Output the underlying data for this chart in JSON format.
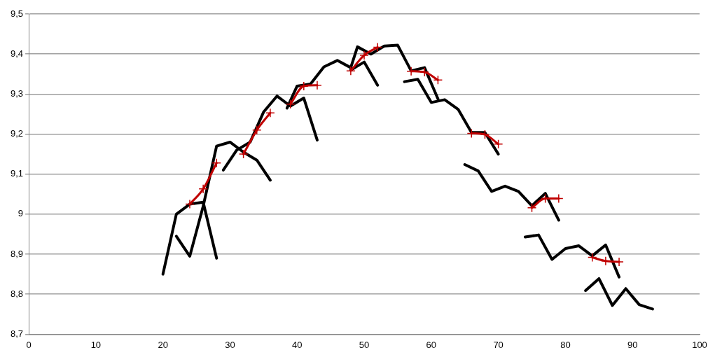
{
  "chart_data": {
    "type": "line",
    "xlim": [
      0,
      100
    ],
    "xticks": [
      0,
      10,
      20,
      30,
      40,
      50,
      60,
      70,
      80,
      90,
      100
    ],
    "ylim": [
      8.7,
      9.5
    ],
    "yticks": [
      {
        "value": 8.7,
        "label": "8,7"
      },
      {
        "value": 8.8,
        "label": "8,8"
      },
      {
        "value": 8.9,
        "label": "8,9"
      },
      {
        "value": 9,
        "label": "9"
      },
      {
        "value": 9.1,
        "label": "9,1"
      },
      {
        "value": 9.2,
        "label": "9,2"
      },
      {
        "value": 9.3,
        "label": "9,3"
      },
      {
        "value": 9.4,
        "label": "9,4"
      },
      {
        "value": 9.5,
        "label": "9,5"
      }
    ],
    "grid": "y",
    "legend": false,
    "line_style": "solid",
    "series": [
      {
        "color": "#000000",
        "marker": "none",
        "x": [
          20,
          22,
          24,
          26,
          28
        ],
        "values": [
          8.85,
          9.0,
          9.025,
          9.03,
          8.89
        ]
      },
      {
        "color": "#000000",
        "marker": "none",
        "x": [
          22,
          24,
          26,
          28,
          30,
          32,
          34,
          36
        ],
        "values": [
          8.945,
          8.895,
          9.02,
          9.17,
          9.18,
          9.155,
          9.135,
          9.085
        ]
      },
      {
        "color": "#000000",
        "marker": "none",
        "x": [
          29,
          31,
          33,
          35,
          37,
          39,
          41,
          43
        ],
        "values": [
          9.11,
          9.16,
          9.18,
          9.255,
          9.295,
          9.27,
          9.29,
          9.185
        ]
      },
      {
        "color": "#000000",
        "marker": "none",
        "x": [
          38.5,
          40,
          42,
          44,
          46,
          48,
          49,
          51,
          53,
          55,
          57,
          59,
          61
        ],
        "values": [
          9.265,
          9.32,
          9.325,
          9.368,
          9.384,
          9.366,
          9.418,
          9.4,
          9.42,
          9.422,
          9.358,
          9.366,
          9.288
        ]
      },
      {
        "color": "#000000",
        "marker": "none",
        "x": [
          48,
          50,
          52
        ],
        "values": [
          9.36,
          9.38,
          9.322
        ]
      },
      {
        "color": "#000000",
        "marker": "none",
        "x": [
          56,
          58,
          60,
          62,
          64,
          66,
          68,
          70
        ],
        "values": [
          9.331,
          9.337,
          9.279,
          9.286,
          9.262,
          9.204,
          9.204,
          9.15
        ]
      },
      {
        "color": "#000000",
        "marker": "none",
        "x": [
          65,
          67,
          69,
          71,
          73,
          75,
          77,
          79
        ],
        "values": [
          9.124,
          9.108,
          9.057,
          9.07,
          9.057,
          9.021,
          9.052,
          8.985
        ]
      },
      {
        "color": "#000000",
        "marker": "none",
        "x": [
          74,
          76,
          78,
          80,
          82,
          84,
          86,
          88
        ],
        "values": [
          8.943,
          8.948,
          8.887,
          8.914,
          8.921,
          8.896,
          8.923,
          8.843
        ]
      },
      {
        "color": "#000000",
        "marker": "none",
        "x": [
          83,
          85,
          87,
          89,
          91,
          93
        ],
        "values": [
          8.809,
          8.839,
          8.772,
          8.814,
          8.774,
          8.763
        ]
      },
      {
        "color": "#c00000",
        "marker": "cross",
        "x": [
          24,
          26,
          28
        ],
        "values": [
          9.025,
          9.063,
          9.128
        ]
      },
      {
        "color": "#c00000",
        "marker": "cross",
        "x": [
          32,
          34,
          36
        ],
        "values": [
          9.15,
          9.21,
          9.253
        ]
      },
      {
        "color": "#c00000",
        "marker": "cross",
        "x": [
          39,
          41,
          43
        ],
        "values": [
          9.275,
          9.32,
          9.322
        ]
      },
      {
        "color": "#c00000",
        "marker": "cross",
        "x": [
          48,
          50,
          52
        ],
        "values": [
          9.358,
          9.397,
          9.417
        ]
      },
      {
        "color": "#c00000",
        "marker": "cross",
        "x": [
          57,
          59,
          61
        ],
        "values": [
          9.357,
          9.355,
          9.335
        ]
      },
      {
        "color": "#c00000",
        "marker": "cross",
        "x": [
          66,
          68,
          70
        ],
        "values": [
          9.202,
          9.199,
          9.175
        ]
      },
      {
        "color": "#c00000",
        "marker": "cross",
        "x": [
          75,
          77,
          79
        ],
        "values": [
          9.016,
          9.039,
          9.039
        ]
      },
      {
        "color": "#c00000",
        "marker": "cross",
        "x": [
          84,
          86,
          88
        ],
        "values": [
          8.892,
          8.883,
          8.881
        ]
      }
    ]
  }
}
